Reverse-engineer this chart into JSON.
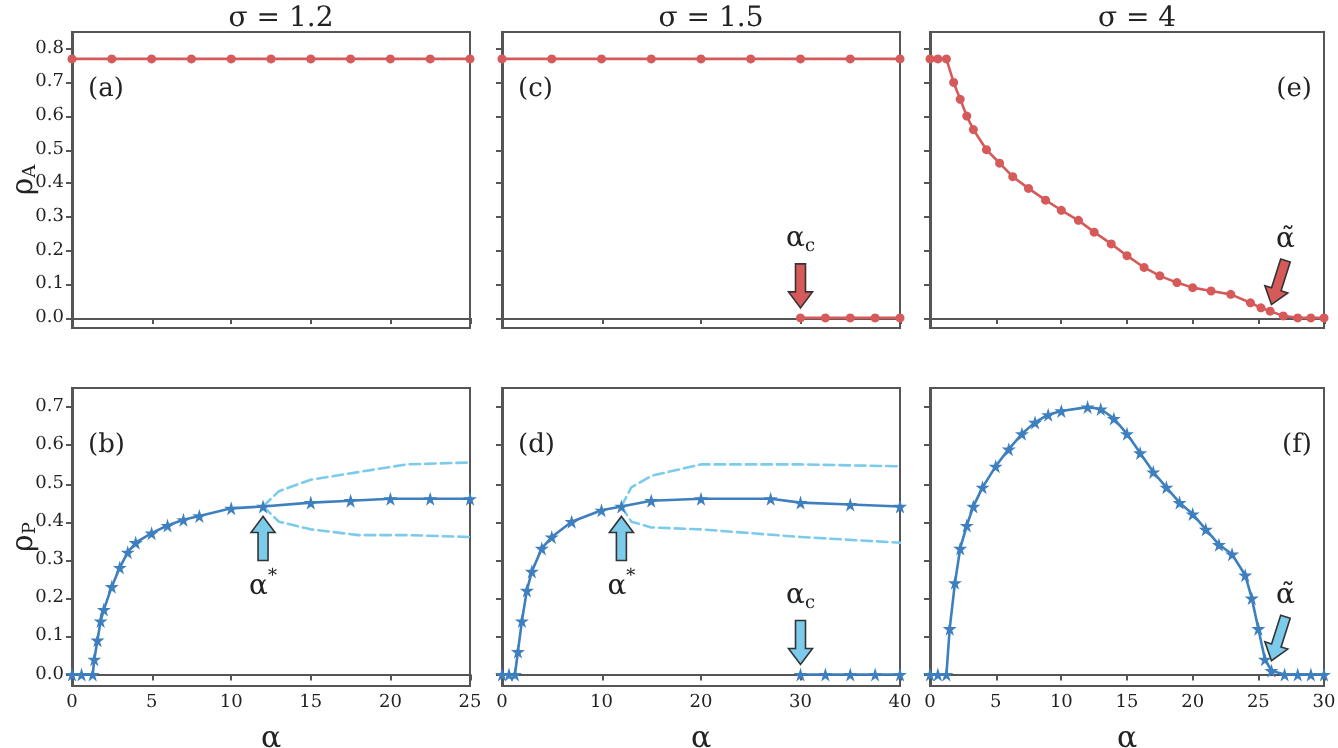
{
  "chart_data": [
    {
      "type": "line",
      "title": "σ = 1.2",
      "ylabel": "ρ$_{A}$",
      "xlim": [
        0,
        25
      ],
      "xticks": [
        0,
        5,
        10,
        15,
        20,
        25
      ],
      "ylim": [
        -0.03,
        0.85
      ],
      "yticks": [
        {
          "value": 0,
          "label": "0.0"
        },
        {
          "value": 0.1,
          "label": "0.1"
        },
        {
          "value": 0.2,
          "label": "0.2"
        },
        {
          "value": 0.3,
          "label": "0.3"
        },
        {
          "value": 0.4,
          "label": "0.4"
        },
        {
          "value": 0.5,
          "label": "0.5"
        },
        {
          "value": 0.6,
          "label": "0.6"
        },
        {
          "value": 0.7,
          "label": "0.7"
        },
        {
          "value": 0.8,
          "label": "0.8"
        }
      ],
      "tick_labels": "y",
      "annotations": [
        "(a)"
      ],
      "series": [
        {
          "color": "#d65a5a",
          "marker": "circle",
          "x": [
            0,
            2.5,
            5,
            7.5,
            10,
            12.5,
            15,
            17.5,
            20,
            22.5,
            25
          ],
          "values": [
            0.77,
            0.77,
            0.77,
            0.77,
            0.77,
            0.77,
            0.77,
            0.77,
            0.77,
            0.77,
            0.77
          ]
        }
      ]
    },
    {
      "type": "line",
      "title": "σ = 1.5",
      "xlim": [
        0,
        40
      ],
      "xticks": [
        0,
        10,
        20,
        30,
        40
      ],
      "ylim": [
        -0.03,
        0.85
      ],
      "yticks": [
        0,
        0.1,
        0.2,
        0.3,
        0.4,
        0.5,
        0.6,
        0.7,
        0.8
      ],
      "tick_labels": false,
      "annotations": [
        "(c)",
        {
          "text": "α$_{c}$",
          "x": 30,
          "y": 0
        }
      ],
      "series": [
        {
          "color": "#d65a5a",
          "marker": "circle",
          "x": [
            0,
            5,
            10,
            15,
            20,
            25,
            30,
            35,
            40
          ],
          "values": [
            0.77,
            0.77,
            0.77,
            0.77,
            0.77,
            0.77,
            0.77,
            0.77,
            0.77
          ]
        },
        {
          "color": "#d65a5a",
          "marker": "circle",
          "x": [
            30,
            32.5,
            35,
            37.5,
            40
          ],
          "values": [
            0,
            0,
            0,
            0,
            0
          ]
        }
      ]
    },
    {
      "type": "line",
      "title": "σ = 4",
      "xlim": [
        0,
        30
      ],
      "xticks": [
        0,
        5,
        10,
        15,
        20,
        25,
        30
      ],
      "ylim": [
        -0.03,
        0.85
      ],
      "yticks": [
        0,
        0.1,
        0.2,
        0.3,
        0.4,
        0.5,
        0.6,
        0.7,
        0.8
      ],
      "tick_labels": false,
      "annotations": [
        "(e)",
        {
          "text": "α̃",
          "x": 26,
          "y": 0.01
        }
      ],
      "series": [
        {
          "color": "#d65a5a",
          "marker": "circle",
          "x": [
            0,
            0.6,
            1.25,
            1.8,
            2.3,
            2.8,
            3.3,
            4.3,
            5.3,
            6.3,
            7.5,
            8.8,
            10,
            11.3,
            12.5,
            13.8,
            15,
            16.3,
            17.5,
            18.8,
            20,
            21.4,
            22.9,
            24.4,
            25.2,
            25.9,
            26.9,
            28,
            29,
            30
          ],
          "values": [
            0.77,
            0.77,
            0.77,
            0.7,
            0.65,
            0.6,
            0.56,
            0.5,
            0.46,
            0.42,
            0.385,
            0.35,
            0.32,
            0.29,
            0.255,
            0.22,
            0.185,
            0.15,
            0.125,
            0.105,
            0.09,
            0.08,
            0.07,
            0.045,
            0.03,
            0.02,
            0.006,
            0,
            0,
            0
          ]
        }
      ]
    },
    {
      "type": "line",
      "xlabel": "α",
      "ylabel": "ρ$_{P}$",
      "xlim": [
        0,
        25
      ],
      "xticks": [
        0,
        5,
        10,
        15,
        20,
        25
      ],
      "ylim": [
        -0.03,
        0.75
      ],
      "yticks": [
        {
          "value": 0,
          "label": "0.0"
        },
        {
          "value": 0.1,
          "label": "0.1"
        },
        {
          "value": 0.2,
          "label": "0.2"
        },
        {
          "value": 0.3,
          "label": "0.3"
        },
        {
          "value": 0.4,
          "label": "0.4"
        },
        {
          "value": 0.5,
          "label": "0.5"
        },
        {
          "value": 0.6,
          "label": "0.6"
        },
        {
          "value": 0.7,
          "label": "0.7"
        }
      ],
      "annotations": [
        "(b)",
        {
          "text": "α$^{*}$",
          "x": 12,
          "y": 0.44
        }
      ],
      "series": [
        {
          "color": "#3d7fbf",
          "marker": "star",
          "x": [
            0,
            0.6,
            1.3,
            1.4,
            1.6,
            1.8,
            2,
            2.5,
            3,
            3.5,
            4,
            5,
            6,
            7,
            8,
            10,
            12,
            15,
            17.5,
            20,
            22.5,
            25
          ],
          "values": [
            0,
            0,
            0,
            0.04,
            0.09,
            0.14,
            0.17,
            0.23,
            0.28,
            0.32,
            0.345,
            0.37,
            0.39,
            0.405,
            0.415,
            0.435,
            0.44,
            0.45,
            0.455,
            0.46,
            0.46,
            0.46
          ]
        },
        {
          "color": "#7ccbea",
          "marker": "none",
          "line_style": "dashed",
          "x": [
            12,
            13,
            15,
            18,
            21,
            25
          ],
          "values": [
            0.44,
            0.48,
            0.51,
            0.53,
            0.55,
            0.555
          ]
        },
        {
          "color": "#7ccbea",
          "marker": "none",
          "line_style": "dashed",
          "x": [
            12,
            13,
            15,
            18,
            21,
            25
          ],
          "values": [
            0.44,
            0.4,
            0.38,
            0.365,
            0.365,
            0.36
          ]
        }
      ]
    },
    {
      "type": "line",
      "xlabel": "α",
      "xlim": [
        0,
        40
      ],
      "xticks": [
        0,
        10,
        20,
        30,
        40
      ],
      "ylim": [
        -0.03,
        0.75
      ],
      "yticks": [
        0,
        0.1,
        0.2,
        0.3,
        0.4,
        0.5,
        0.6,
        0.7
      ],
      "tick_labels": "x",
      "annotations": [
        "(d)",
        {
          "text": "α$^{*}$",
          "x": 12,
          "y": 0.44
        },
        {
          "text": "α$_{c}$",
          "x": 30,
          "y": 0
        }
      ],
      "series": [
        {
          "color": "#3d7fbf",
          "marker": "star",
          "x": [
            0,
            0.7,
            1.3,
            1.6,
            2,
            2.5,
            3,
            4,
            5,
            7,
            10,
            12,
            15,
            20,
            27,
            30,
            35,
            40
          ],
          "values": [
            0,
            0,
            0,
            0.06,
            0.14,
            0.22,
            0.27,
            0.33,
            0.36,
            0.4,
            0.43,
            0.44,
            0.455,
            0.46,
            0.46,
            0.45,
            0.445,
            0.44
          ]
        },
        {
          "color": "#3d7fbf",
          "marker": "star",
          "x": [
            30,
            32.5,
            35,
            37.5,
            40
          ],
          "values": [
            0,
            0,
            0,
            0,
            0
          ]
        },
        {
          "color": "#7ccbea",
          "marker": "none",
          "line_style": "dashed",
          "x": [
            12,
            13,
            15,
            20,
            30,
            40
          ],
          "values": [
            0.44,
            0.49,
            0.52,
            0.55,
            0.55,
            0.545
          ]
        },
        {
          "color": "#7ccbea",
          "marker": "none",
          "line_style": "dashed",
          "x": [
            12,
            13,
            15,
            20,
            25,
            30,
            40
          ],
          "values": [
            0.44,
            0.4,
            0.385,
            0.38,
            0.37,
            0.36,
            0.345
          ]
        }
      ]
    },
    {
      "type": "line",
      "xlabel": "α",
      "xlim": [
        0,
        30
      ],
      "xticks": [
        0,
        5,
        10,
        15,
        20,
        25,
        30
      ],
      "ylim": [
        -0.03,
        0.75
      ],
      "yticks": [
        0,
        0.1,
        0.2,
        0.3,
        0.4,
        0.5,
        0.6,
        0.7
      ],
      "tick_labels": "x",
      "annotations": [
        "(f)",
        {
          "text": "α̃",
          "x": 26,
          "y": 0.01
        }
      ],
      "series": [
        {
          "color": "#3d7fbf",
          "marker": "star",
          "x": [
            0,
            0.6,
            1.25,
            1.5,
            1.9,
            2.3,
            2.8,
            3.3,
            4,
            5,
            6,
            7,
            8,
            9,
            10,
            12,
            13,
            14,
            15,
            16,
            17,
            18,
            19,
            20,
            21,
            22,
            23,
            24,
            24.5,
            25,
            25.5,
            26,
            27,
            28,
            29,
            30
          ],
          "values": [
            0,
            0,
            0,
            0.12,
            0.24,
            0.33,
            0.39,
            0.44,
            0.49,
            0.545,
            0.59,
            0.63,
            0.66,
            0.68,
            0.69,
            0.7,
            0.695,
            0.67,
            0.63,
            0.58,
            0.53,
            0.49,
            0.45,
            0.42,
            0.38,
            0.34,
            0.315,
            0.26,
            0.2,
            0.12,
            0.04,
            0.01,
            0,
            0,
            0,
            0
          ]
        }
      ]
    }
  ]
}
